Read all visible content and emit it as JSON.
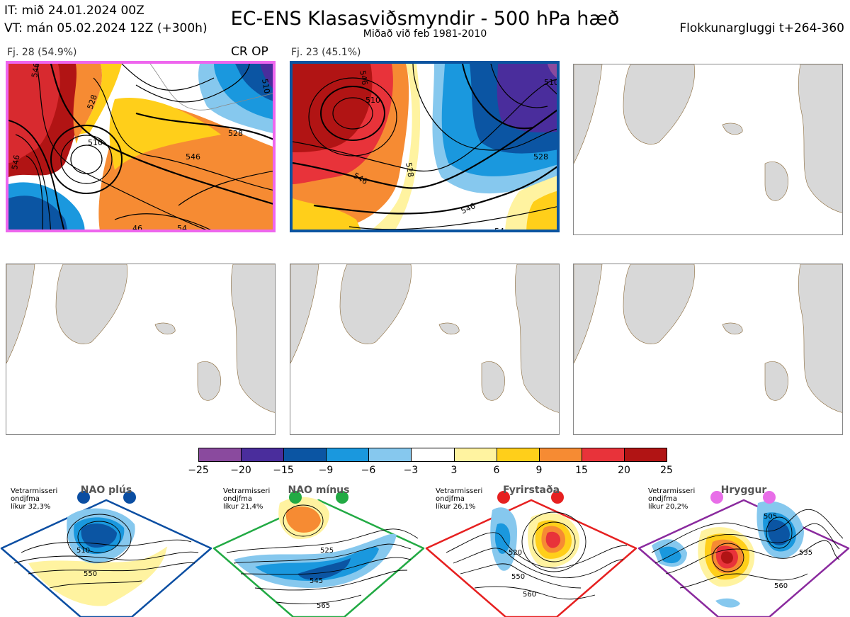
{
  "header": {
    "it_line": "IT: mið 24.01.2024 00Z",
    "vt_line": "VT: mán 05.02.2024 12Z  (+300h)",
    "title": "EC-ENS Klasasviðsmyndir - 500 hPa hæð",
    "subtitle": "Miðað við feb 1981-2010",
    "window": "Flokkunargluggi t+264-360"
  },
  "clusters": [
    {
      "label": "Fj. 28 (54.9%)",
      "tag": "CR OP",
      "frame_color": "#ee66ee",
      "contour_labels": [
        "546",
        "528",
        "510",
        "546",
        "528",
        "510",
        "546",
        "54",
        "46"
      ]
    },
    {
      "label": "Fj. 23 (45.1%)",
      "tag": "",
      "frame_color": "#0b54a0",
      "contour_labels": [
        "510",
        "546",
        "528",
        "546",
        "528",
        "546",
        "510",
        "54"
      ]
    }
  ],
  "legend": {
    "colors": [
      "#8a4a9e",
      "#4a2d9c",
      "#0b55a3",
      "#1a98de",
      "#86c8ee",
      "#ffffff",
      "#fff3a0",
      "#ffcf1a",
      "#f68b33",
      "#e8333a",
      "#b11414"
    ],
    "ticks": [
      "−25",
      "−20",
      "−15",
      "−9",
      "−6",
      "−3",
      "3",
      "6",
      "9",
      "15",
      "20",
      "25"
    ]
  },
  "regimes": [
    {
      "name": "NAO plús",
      "info": [
        "Vetrarmisseri",
        "ondjfma",
        "líkur 32,3%"
      ],
      "color": "#0b4ea2",
      "labels": [
        "510",
        "550"
      ]
    },
    {
      "name": "NAO mínus",
      "info": [
        "Vetrarmisseri",
        "ondjfma",
        "líkur 21,4%"
      ],
      "color": "#22aa44",
      "labels": [
        "525",
        "545",
        "565"
      ]
    },
    {
      "name": "Fyrirstaða",
      "info": [
        "Vetrarmisseri",
        "ondjfma",
        "líkur 26,1%"
      ],
      "color": "#e62020",
      "labels": [
        "520",
        "550",
        "560"
      ]
    },
    {
      "name": "Hryggur",
      "info": [
        "Vetrarmisseri",
        "ondjfma",
        "líkur 20,2%"
      ],
      "color": "#e86ee8",
      "labels": [
        "505",
        "535",
        "560"
      ]
    }
  ]
}
